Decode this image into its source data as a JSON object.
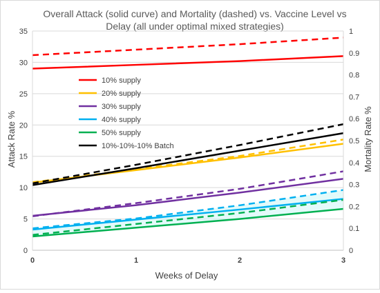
{
  "chart_data": {
    "type": "line",
    "title_lines": [
      "Overall Attack (solid curve) and Mortality (dashed) vs. Vaccine Level vs",
      "Delay (all under optimal mixed strategies)"
    ],
    "xlabel": "Weeks  of Delay",
    "ylabel": "Attack Rate %",
    "y2label": "Mortality Rate %",
    "x": [
      0,
      1,
      2,
      3
    ],
    "xlim": [
      0,
      3
    ],
    "x_ticks": [
      "0",
      "1",
      "2",
      "3"
    ],
    "ylim": [
      0,
      35
    ],
    "y_ticks": [
      "0",
      "5",
      "10",
      "15",
      "20",
      "25",
      "30",
      "35"
    ],
    "y2lim": [
      0,
      1
    ],
    "y2_ticks": [
      "0",
      "0.1",
      "0.2",
      "0.3",
      "0.4",
      "0.5",
      "0.6",
      "0.7",
      "0.8",
      "0.9",
      "1"
    ],
    "grid": true,
    "legend_position": "upper-left inside plot",
    "series": [
      {
        "name": "10% supply",
        "color": "#ff0000",
        "attack": [
          29,
          29.6,
          30.2,
          31
        ],
        "mortality": [
          0.89,
          0.915,
          0.94,
          0.97
        ]
      },
      {
        "name": "20% supply",
        "color": "#ffc000",
        "attack": [
          10.8,
          12.8,
          14.8,
          17
        ],
        "mortality": [
          0.31,
          0.37,
          0.43,
          0.505
        ]
      },
      {
        "name": "30% supply",
        "color": "#7030a0",
        "attack": [
          5.5,
          7.2,
          9.2,
          11.4
        ],
        "mortality": [
          0.155,
          0.215,
          0.28,
          0.36
        ]
      },
      {
        "name": "40% supply",
        "color": "#00b0f0",
        "attack": [
          3.3,
          4.9,
          6.5,
          8.2
        ],
        "mortality": [
          0.1,
          0.145,
          0.205,
          0.275
        ]
      },
      {
        "name": "50% supply",
        "color": "#00b050",
        "attack": [
          2.2,
          3.6,
          5,
          6.6
        ],
        "mortality": [
          0.07,
          0.12,
          0.17,
          0.23
        ]
      },
      {
        "name": "10%-10%-10% Batch",
        "color": "#000000",
        "attack": [
          10.4,
          13.1,
          15.9,
          18.7
        ],
        "mortality": [
          0.305,
          0.39,
          0.48,
          0.575
        ]
      }
    ],
    "band_color": "#ccf5f5"
  }
}
